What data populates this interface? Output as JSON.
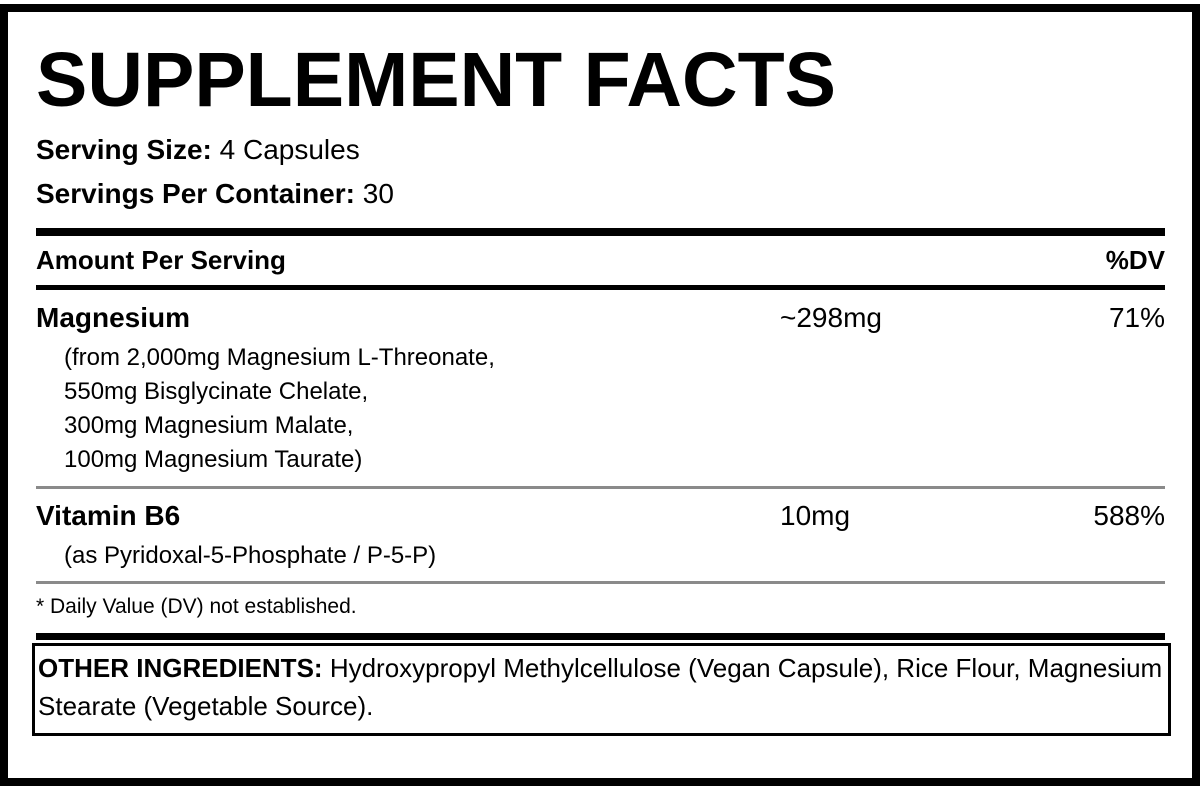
{
  "title": "SUPPLEMENT FACTS",
  "serving_size": {
    "label": "Serving Size:",
    "value": "4 Capsules"
  },
  "servings_per_container": {
    "label": "Servings Per Container:",
    "value": "30"
  },
  "header": {
    "amount": "Amount Per Serving",
    "dv": "%DV"
  },
  "nutrients": [
    {
      "name": "Magnesium",
      "amount": "~298mg",
      "dv": "71%",
      "details": [
        "(from 2,000mg Magnesium L-Threonate,",
        "550mg Bisglycinate Chelate,",
        "300mg Magnesium Malate,",
        "100mg Magnesium Taurate)"
      ]
    },
    {
      "name": "Vitamin B6",
      "amount": "10mg",
      "dv": "588%",
      "details": [
        "(as Pyridoxal-5-Phosphate / P-5-P)"
      ]
    }
  ],
  "footnote": "* Daily Value (DV) not established.",
  "other_ingredients": {
    "label": "OTHER INGREDIENTS:",
    "text": "Hydroxypropyl Methylcellulose (Vegan Capsule), Rice Flour, Magnesium Stearate (Vegetable Source)."
  },
  "colors": {
    "text": "#000000",
    "divider_grey": "#8a8a8a",
    "background": "#ffffff"
  }
}
